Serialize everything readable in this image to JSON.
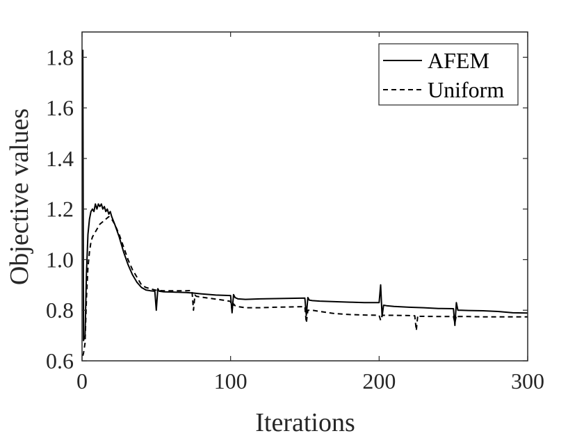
{
  "chart_data": {
    "type": "line",
    "title": "",
    "xlabel": "Iterations",
    "ylabel": "Objective values",
    "xlim": [
      0,
      300
    ],
    "ylim": [
      0.6,
      1.9
    ],
    "xticks": [
      0,
      100,
      200,
      300
    ],
    "xtick_labels": [
      "0",
      "100",
      "200",
      "300"
    ],
    "yticks": [
      0.6,
      0.8,
      1.0,
      1.2,
      1.4,
      1.6,
      1.8
    ],
    "ytick_labels": [
      "0.6",
      "0.8",
      "1.0",
      "1.2",
      "1.4",
      "1.6",
      "1.8"
    ],
    "grid": false,
    "legend": {
      "position": "top-right"
    },
    "series": [
      {
        "name": "AFEM",
        "style": "solid",
        "color": "#000000",
        "x": [
          0.5,
          1,
          2,
          3,
          4,
          5,
          6,
          7,
          8,
          9,
          10,
          11,
          12,
          13,
          14,
          15,
          16,
          17,
          18,
          19,
          20,
          22,
          25,
          28,
          31,
          34,
          37,
          40,
          43,
          46,
          49,
          50,
          51,
          52,
          55,
          60,
          70,
          75,
          80,
          90,
          100,
          101,
          102,
          103,
          105,
          110,
          120,
          130,
          140,
          150,
          151,
          152,
          153,
          155,
          160,
          170,
          180,
          190,
          200,
          201,
          202,
          203,
          205,
          210,
          220,
          230,
          240,
          250,
          251,
          252,
          253,
          255,
          260,
          270,
          280,
          290,
          300
        ],
        "y": [
          1.83,
          0.68,
          0.7,
          0.95,
          1.1,
          1.16,
          1.19,
          1.2,
          1.19,
          1.22,
          1.2,
          1.22,
          1.21,
          1.22,
          1.2,
          1.21,
          1.19,
          1.2,
          1.18,
          1.19,
          1.17,
          1.14,
          1.09,
          1.03,
          0.98,
          0.94,
          0.91,
          0.89,
          0.88,
          0.877,
          0.875,
          0.8,
          0.885,
          0.875,
          0.873,
          0.872,
          0.87,
          0.868,
          0.865,
          0.86,
          0.858,
          0.79,
          0.862,
          0.85,
          0.845,
          0.843,
          0.845,
          0.846,
          0.847,
          0.848,
          0.78,
          0.85,
          0.84,
          0.838,
          0.836,
          0.834,
          0.832,
          0.83,
          0.83,
          0.9,
          0.775,
          0.82,
          0.818,
          0.815,
          0.812,
          0.81,
          0.807,
          0.806,
          0.74,
          0.83,
          0.8,
          0.8,
          0.799,
          0.798,
          0.795,
          0.79,
          0.789
        ]
      },
      {
        "name": "Uniform",
        "style": "dashed",
        "color": "#000000",
        "x": [
          0.5,
          1,
          2,
          3,
          4,
          5,
          6,
          7,
          8,
          10,
          12,
          14,
          16,
          18,
          20,
          22,
          25,
          28,
          31,
          34,
          37,
          40,
          43,
          46,
          49,
          52,
          55,
          60,
          65,
          70,
          74,
          75,
          76,
          77,
          80,
          85,
          90,
          95,
          100,
          101,
          102,
          103,
          105,
          110,
          120,
          130,
          140,
          150,
          151,
          152,
          153,
          155,
          160,
          170,
          180,
          190,
          200,
          201,
          202,
          210,
          220,
          224,
          225,
          226,
          227,
          230,
          240,
          250,
          251,
          252,
          253,
          260,
          270,
          280,
          290,
          300
        ],
        "y": [
          0.62,
          0.63,
          0.67,
          0.85,
          0.97,
          1.03,
          1.07,
          1.09,
          1.1,
          1.12,
          1.14,
          1.15,
          1.16,
          1.17,
          1.16,
          1.14,
          1.1,
          1.05,
          1.0,
          0.96,
          0.93,
          0.9,
          0.89,
          0.885,
          0.88,
          0.878,
          0.877,
          0.877,
          0.877,
          0.877,
          0.878,
          0.8,
          0.86,
          0.855,
          0.852,
          0.848,
          0.844,
          0.84,
          0.835,
          0.8,
          0.825,
          0.818,
          0.814,
          0.81,
          0.81,
          0.812,
          0.813,
          0.814,
          0.75,
          0.8,
          0.8,
          0.8,
          0.795,
          0.787,
          0.783,
          0.781,
          0.78,
          0.76,
          0.78,
          0.78,
          0.779,
          0.778,
          0.72,
          0.78,
          0.776,
          0.776,
          0.775,
          0.775,
          0.75,
          0.78,
          0.775,
          0.775,
          0.774,
          0.774,
          0.774,
          0.774
        ]
      }
    ]
  }
}
